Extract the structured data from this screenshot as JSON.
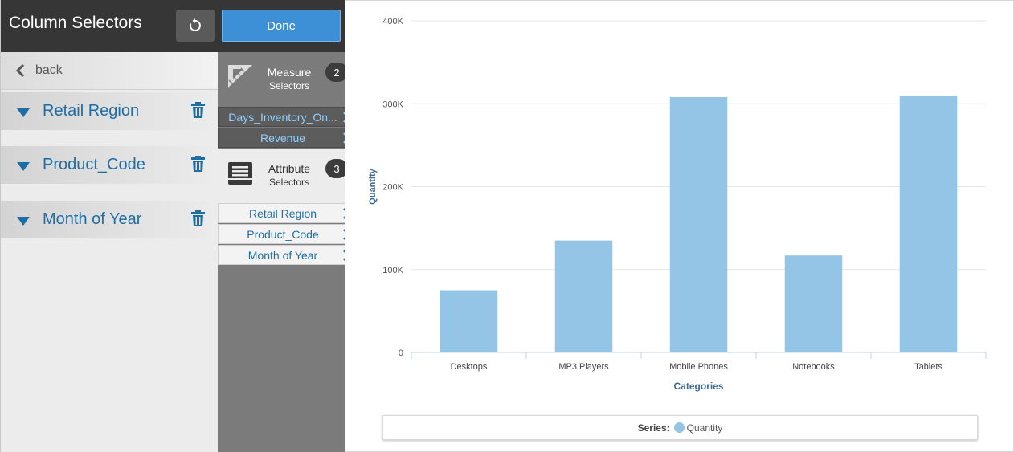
{
  "header": {
    "title": "Column Selectors",
    "reset_icon": "reset-icon",
    "done_label": "Done"
  },
  "selectors_panel": {
    "back_label": "back",
    "rows": [
      {
        "label": "Retail Region"
      },
      {
        "label": "Product_Code"
      },
      {
        "label": "Month of Year"
      }
    ]
  },
  "groups": {
    "measure": {
      "title_line1": "Measure",
      "title_line2": "Selectors",
      "count": "2",
      "items": [
        "Days_Inventory_On...",
        "Revenue"
      ]
    },
    "attribute": {
      "title_line1": "Attribute",
      "title_line2": "Selectors",
      "count": "3",
      "items": [
        "Retail Region",
        "Product_Code",
        "Month of Year"
      ]
    }
  },
  "colors": {
    "accent": "#3d8fd6",
    "bar": "#94c5e6",
    "selector_text": "#1e6ea6",
    "measure_chip_text": "#8fd0ff"
  },
  "chart_data": {
    "type": "bar",
    "categories": [
      "Desktops",
      "MP3 Players",
      "Mobile Phones",
      "Notebooks",
      "Tablets"
    ],
    "series": [
      {
        "name": "Quantity",
        "values": [
          75000,
          135000,
          308000,
          117000,
          310000
        ]
      }
    ],
    "xlabel": "Categories",
    "ylabel": "Quantity",
    "ylim": [
      0,
      400000
    ],
    "yticks": [
      0,
      100000,
      200000,
      300000,
      400000
    ],
    "ytick_labels": [
      "0",
      "100K",
      "200K",
      "300K",
      "400K"
    ],
    "grid": true,
    "legend": {
      "title": "Series:",
      "placement": "bottom"
    }
  }
}
